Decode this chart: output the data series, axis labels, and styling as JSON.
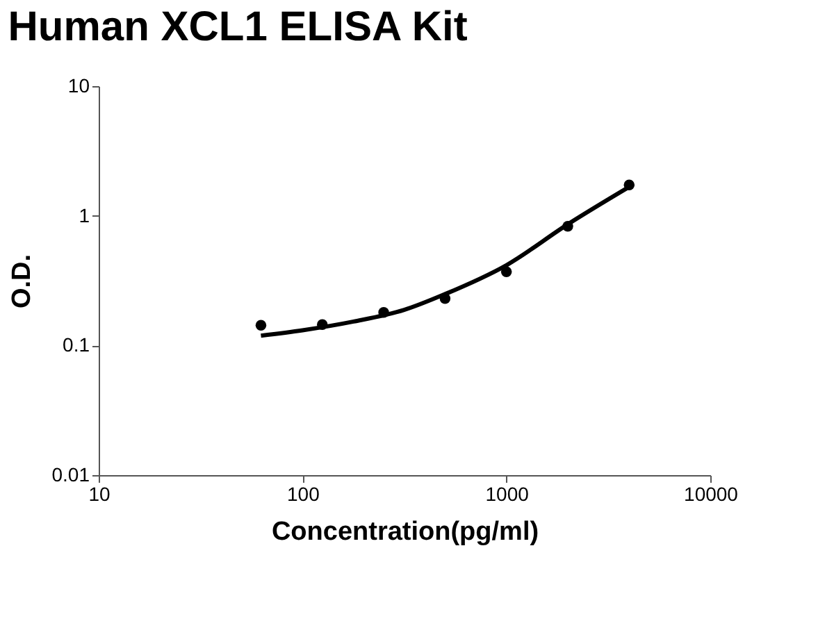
{
  "chart_data": {
    "type": "scatter",
    "title": "Human XCL1 ELISA Kit",
    "xlabel": "Concentration(pg/ml)",
    "ylabel": "O.D.",
    "series": [
      {
        "type": "scatter",
        "color": "#000000",
        "marker": "circle",
        "x": [
          62.5,
          125,
          250,
          500,
          1000,
          2000,
          4000
        ],
        "values": [
          0.143,
          0.145,
          0.18,
          0.23,
          0.37,
          0.83,
          1.73
        ]
      },
      {
        "type": "line",
        "color": "#000000",
        "marker": "none",
        "line_style": "solid",
        "x": [
          62.5,
          100,
          178,
          315,
          500,
          1000,
          2000,
          4000
        ],
        "values": [
          0.119,
          0.131,
          0.153,
          0.188,
          0.249,
          0.416,
          0.86,
          1.67
        ]
      }
    ],
    "log": "xy",
    "xlim": [
      10,
      10000
    ],
    "xticks": [
      10,
      100,
      1000,
      10000
    ],
    "ylim": [
      0.01,
      10
    ],
    "yticks": [
      0.01,
      0.1,
      1,
      10
    ],
    "grid": false
  }
}
